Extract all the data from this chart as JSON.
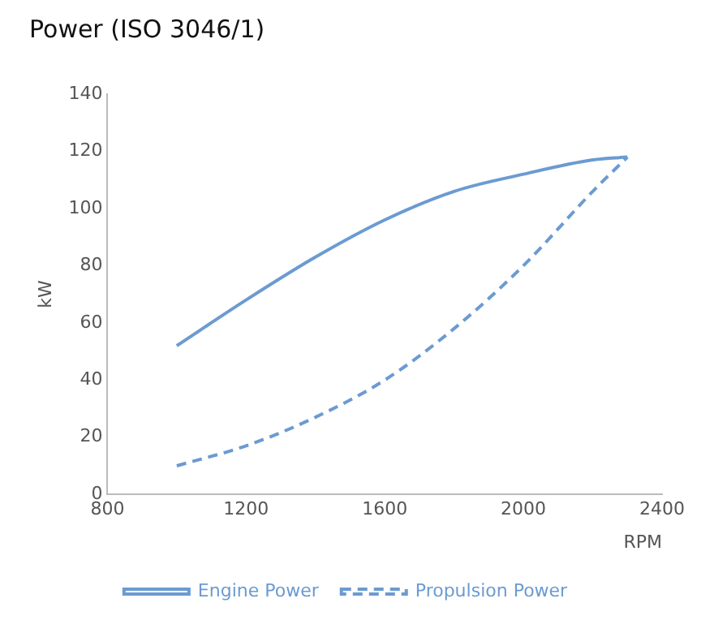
{
  "chart_data": {
    "type": "line",
    "title": "Power (ISO 3046/1)",
    "xlabel": "RPM",
    "ylabel": "kW",
    "x": [
      1000,
      1200,
      1400,
      1600,
      1800,
      2000,
      2200,
      2300
    ],
    "series": [
      {
        "name": "Engine Power",
        "color": "#6b9bd1",
        "line_style": "solid",
        "values": [
          52,
          68,
          83,
          96,
          106,
          112,
          117,
          118
        ]
      },
      {
        "name": "Propulsion Power",
        "color": "#6b9bd1",
        "line_style": "dashed",
        "values": [
          10,
          17,
          27,
          40,
          58,
          80,
          106,
          118
        ]
      }
    ],
    "xlim": [
      800,
      2400
    ],
    "xticks": [
      800,
      1200,
      1600,
      2000,
      2400
    ],
    "ylim": [
      0,
      140
    ],
    "yticks": [
      0,
      20,
      40,
      60,
      80,
      100,
      120,
      140
    ],
    "grid": false,
    "legend": "bottom",
    "marker": "none"
  }
}
